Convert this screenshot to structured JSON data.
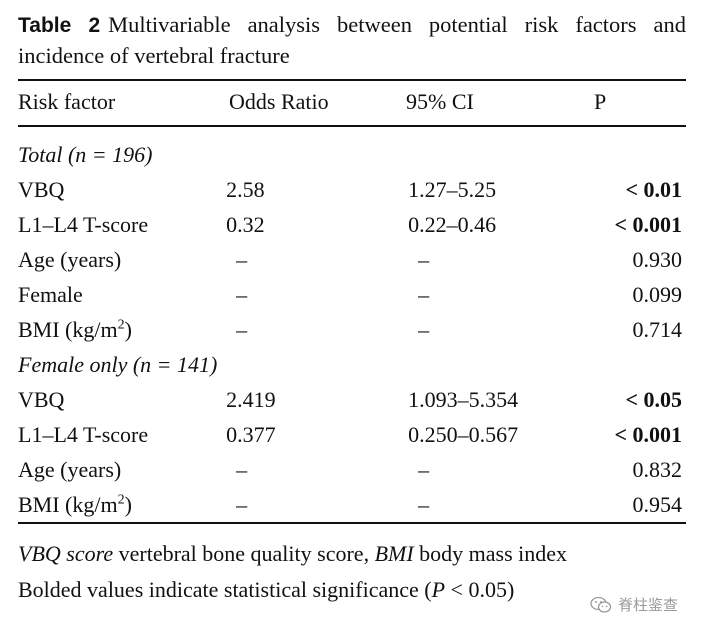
{
  "caption": {
    "label": "Table 2",
    "text": "Multivariable analysis between potential risk factors and incidence of vertebral fracture"
  },
  "headers": [
    "Risk factor",
    "Odds Ratio",
    "95% CI",
    "P"
  ],
  "sections": [
    {
      "title_prefix": "Total (",
      "title_n": "n",
      "title_suffix": " = 196)",
      "rows": [
        {
          "factor": "VBQ",
          "or": "2.58",
          "ci": "1.27–5.25",
          "p": "< 0.01",
          "significant": true
        },
        {
          "factor": "L1–L4 T-score",
          "or": "0.32",
          "ci": "0.22–0.46",
          "p": "< 0.001",
          "significant": true
        },
        {
          "factor": "Age (years)",
          "or": "–",
          "ci": "–",
          "p": "0.930",
          "significant": false
        },
        {
          "factor": "Female",
          "or": "–",
          "ci": "–",
          "p": "0.099",
          "significant": false
        },
        {
          "factor": "BMI (kg/m",
          "sup": "2",
          "factor_tail": ")",
          "or": "–",
          "ci": "–",
          "p": "0.714",
          "significant": false
        }
      ]
    },
    {
      "title_prefix": "Female only (",
      "title_n": "n",
      "title_suffix": " = 141)",
      "rows": [
        {
          "factor": "VBQ",
          "or": "2.419",
          "ci": "1.093–5.354",
          "p": "< 0.05",
          "significant": true
        },
        {
          "factor": "L1–L4 T-score",
          "or": "0.377",
          "ci": "0.250–0.567",
          "p": "< 0.001",
          "significant": true
        },
        {
          "factor": "Age (years)",
          "or": "–",
          "ci": "–",
          "p": "0.832",
          "significant": false
        },
        {
          "factor": "BMI (kg/m",
          "sup": "2",
          "factor_tail": ")",
          "or": "–",
          "ci": "–",
          "p": "0.954",
          "significant": false
        }
      ]
    }
  ],
  "footnotes": {
    "abbrev": [
      {
        "term": "VBQ score",
        "def": " vertebral bone quality score, "
      },
      {
        "term": "BMI",
        "def": " body mass index"
      }
    ],
    "significance_prefix": "Bolded values indicate statistical significance (",
    "significance_var": "P",
    "significance_suffix": " < 0.05)"
  },
  "watermark": {
    "text": "脊柱鉴查",
    "icon": "wechat-icon"
  }
}
